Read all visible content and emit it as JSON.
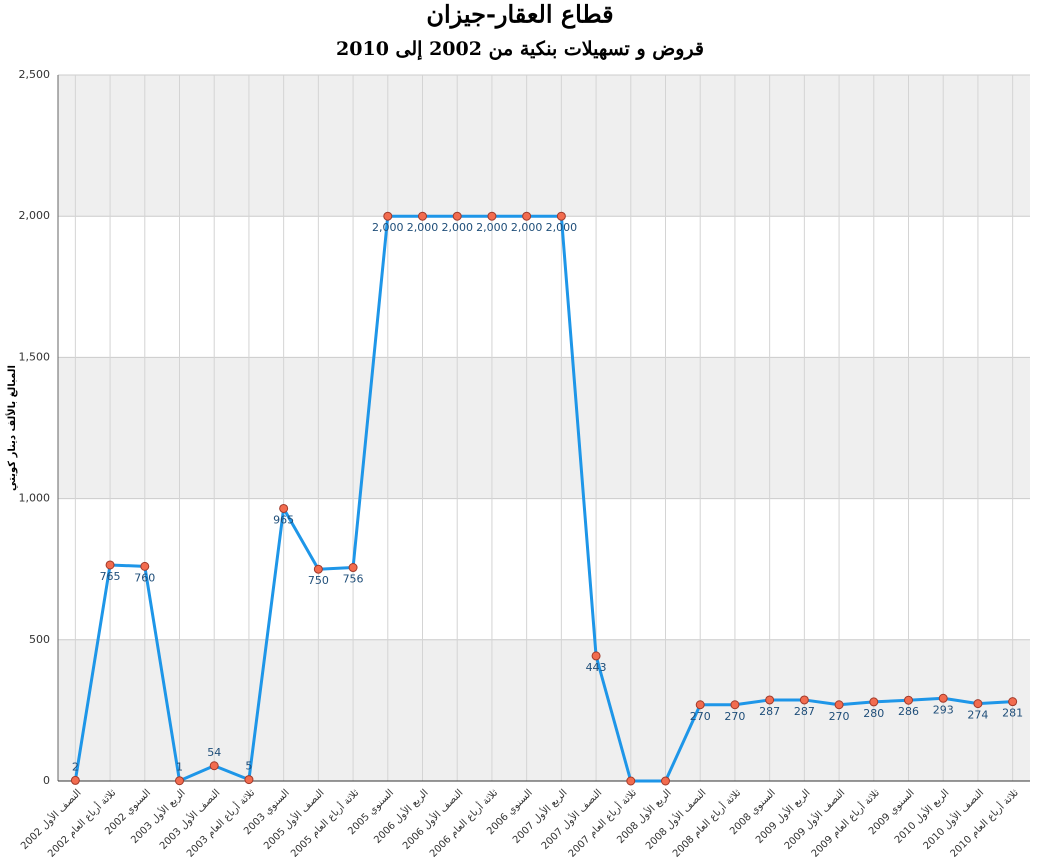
{
  "chart_data": {
    "type": "line",
    "title": "قطاع العقار-جيزان",
    "subtitle": "قروض و تسهيلات بنكية من 2002 إلى 2010",
    "y_label": "المبالغ بالألف دينار كويتي",
    "categories": [
      "النصف الأول 2002",
      "ثلاثة أرباع العام 2002",
      "السنوي 2002",
      "الربع الأول 2003",
      "النصف الأول 2003",
      "ثلاثة أرباع العام 2003",
      "السنوي 2003",
      "النصف الأول 2005",
      "ثلاثة أرباع العام 2005",
      "السنوي 2005",
      "الربع الأول 2006",
      "النصف الأول 2006",
      "ثلاثة أرباع العام 2006",
      "السنوي 2006",
      "الربع الأول 2007",
      "النصف الأول 2007",
      "ثلاثة أرباع العام 2007",
      "الربع الأول 2008",
      "النصف الأول 2008",
      "ثلاثة أرباع العام 2008",
      "السنوي 2008",
      "الربع الأول 2009",
      "النصف الأول 2009",
      "ثلاثة أرباع العام 2009",
      "السنوي 2009",
      "الربع الأول 2010",
      "النصف الأول 2010",
      "ثلاثة أرباع العام 2010"
    ],
    "values": [
      2,
      765,
      760,
      1,
      54,
      5,
      965,
      750,
      756,
      2000,
      2000,
      2000,
      2000,
      2000,
      2000,
      443,
      0,
      0,
      270,
      270,
      287,
      287,
      270,
      280,
      286,
      293,
      274,
      281
    ],
    "value_labels": [
      "2",
      "765",
      "760",
      "1",
      "54",
      "5",
      "965",
      "750",
      "756",
      "2,000",
      "2,000",
      "2,000",
      "2,000",
      "2,000",
      "2,000",
      "443",
      null,
      null,
      "270",
      "270",
      "287",
      "287",
      "270",
      "280",
      "286",
      "293",
      "274",
      "281"
    ],
    "color": "#1e96e8",
    "marker_color": "#f26c4f",
    "ylim": [
      0,
      2500
    ],
    "yticks": [
      0,
      500,
      {
        "value": 1000,
        "label": "1,000"
      },
      {
        "value": 1500,
        "label": "1,500"
      },
      {
        "value": 2000,
        "label": "2,000"
      },
      {
        "value": 2500,
        "label": "2,500"
      }
    ],
    "grid": true
  }
}
